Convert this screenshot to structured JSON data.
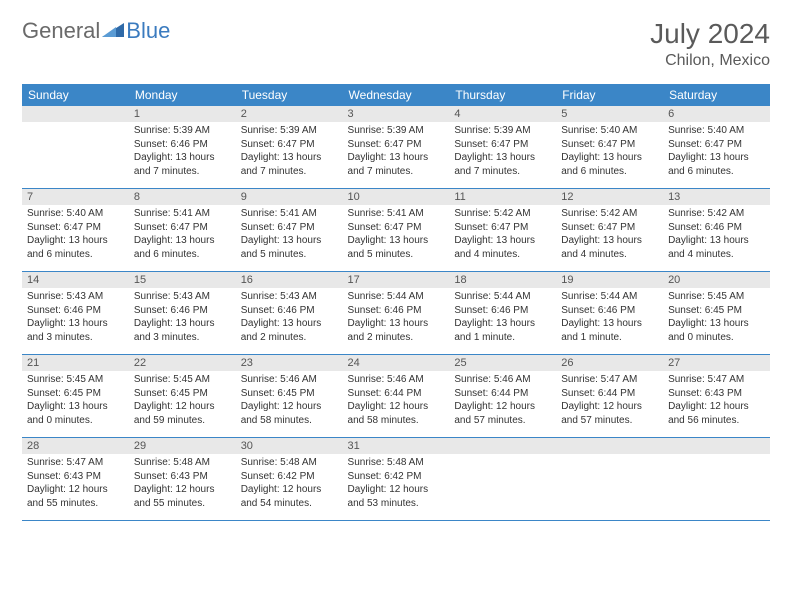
{
  "logo": {
    "text1": "General",
    "text2": "Blue"
  },
  "title": "July 2024",
  "location": "Chilon, Mexico",
  "weekday_headers": [
    "Sunday",
    "Monday",
    "Tuesday",
    "Wednesday",
    "Thursday",
    "Friday",
    "Saturday"
  ],
  "colors": {
    "header_bg": "#3b86c7",
    "header_text": "#ffffff",
    "daynum_bg": "#e8e8e8",
    "border": "#3b86c7",
    "title_color": "#5a5a5a",
    "logo_gray": "#6a6a6a",
    "logo_blue": "#3b7bbf"
  },
  "weeks": [
    [
      {
        "n": "",
        "sr": "",
        "ss": "",
        "dl": ""
      },
      {
        "n": "1",
        "sr": "Sunrise: 5:39 AM",
        "ss": "Sunset: 6:46 PM",
        "dl": "Daylight: 13 hours and 7 minutes."
      },
      {
        "n": "2",
        "sr": "Sunrise: 5:39 AM",
        "ss": "Sunset: 6:47 PM",
        "dl": "Daylight: 13 hours and 7 minutes."
      },
      {
        "n": "3",
        "sr": "Sunrise: 5:39 AM",
        "ss": "Sunset: 6:47 PM",
        "dl": "Daylight: 13 hours and 7 minutes."
      },
      {
        "n": "4",
        "sr": "Sunrise: 5:39 AM",
        "ss": "Sunset: 6:47 PM",
        "dl": "Daylight: 13 hours and 7 minutes."
      },
      {
        "n": "5",
        "sr": "Sunrise: 5:40 AM",
        "ss": "Sunset: 6:47 PM",
        "dl": "Daylight: 13 hours and 6 minutes."
      },
      {
        "n": "6",
        "sr": "Sunrise: 5:40 AM",
        "ss": "Sunset: 6:47 PM",
        "dl": "Daylight: 13 hours and 6 minutes."
      }
    ],
    [
      {
        "n": "7",
        "sr": "Sunrise: 5:40 AM",
        "ss": "Sunset: 6:47 PM",
        "dl": "Daylight: 13 hours and 6 minutes."
      },
      {
        "n": "8",
        "sr": "Sunrise: 5:41 AM",
        "ss": "Sunset: 6:47 PM",
        "dl": "Daylight: 13 hours and 6 minutes."
      },
      {
        "n": "9",
        "sr": "Sunrise: 5:41 AM",
        "ss": "Sunset: 6:47 PM",
        "dl": "Daylight: 13 hours and 5 minutes."
      },
      {
        "n": "10",
        "sr": "Sunrise: 5:41 AM",
        "ss": "Sunset: 6:47 PM",
        "dl": "Daylight: 13 hours and 5 minutes."
      },
      {
        "n": "11",
        "sr": "Sunrise: 5:42 AM",
        "ss": "Sunset: 6:47 PM",
        "dl": "Daylight: 13 hours and 4 minutes."
      },
      {
        "n": "12",
        "sr": "Sunrise: 5:42 AM",
        "ss": "Sunset: 6:47 PM",
        "dl": "Daylight: 13 hours and 4 minutes."
      },
      {
        "n": "13",
        "sr": "Sunrise: 5:42 AM",
        "ss": "Sunset: 6:46 PM",
        "dl": "Daylight: 13 hours and 4 minutes."
      }
    ],
    [
      {
        "n": "14",
        "sr": "Sunrise: 5:43 AM",
        "ss": "Sunset: 6:46 PM",
        "dl": "Daylight: 13 hours and 3 minutes."
      },
      {
        "n": "15",
        "sr": "Sunrise: 5:43 AM",
        "ss": "Sunset: 6:46 PM",
        "dl": "Daylight: 13 hours and 3 minutes."
      },
      {
        "n": "16",
        "sr": "Sunrise: 5:43 AM",
        "ss": "Sunset: 6:46 PM",
        "dl": "Daylight: 13 hours and 2 minutes."
      },
      {
        "n": "17",
        "sr": "Sunrise: 5:44 AM",
        "ss": "Sunset: 6:46 PM",
        "dl": "Daylight: 13 hours and 2 minutes."
      },
      {
        "n": "18",
        "sr": "Sunrise: 5:44 AM",
        "ss": "Sunset: 6:46 PM",
        "dl": "Daylight: 13 hours and 1 minute."
      },
      {
        "n": "19",
        "sr": "Sunrise: 5:44 AM",
        "ss": "Sunset: 6:46 PM",
        "dl": "Daylight: 13 hours and 1 minute."
      },
      {
        "n": "20",
        "sr": "Sunrise: 5:45 AM",
        "ss": "Sunset: 6:45 PM",
        "dl": "Daylight: 13 hours and 0 minutes."
      }
    ],
    [
      {
        "n": "21",
        "sr": "Sunrise: 5:45 AM",
        "ss": "Sunset: 6:45 PM",
        "dl": "Daylight: 13 hours and 0 minutes."
      },
      {
        "n": "22",
        "sr": "Sunrise: 5:45 AM",
        "ss": "Sunset: 6:45 PM",
        "dl": "Daylight: 12 hours and 59 minutes."
      },
      {
        "n": "23",
        "sr": "Sunrise: 5:46 AM",
        "ss": "Sunset: 6:45 PM",
        "dl": "Daylight: 12 hours and 58 minutes."
      },
      {
        "n": "24",
        "sr": "Sunrise: 5:46 AM",
        "ss": "Sunset: 6:44 PM",
        "dl": "Daylight: 12 hours and 58 minutes."
      },
      {
        "n": "25",
        "sr": "Sunrise: 5:46 AM",
        "ss": "Sunset: 6:44 PM",
        "dl": "Daylight: 12 hours and 57 minutes."
      },
      {
        "n": "26",
        "sr": "Sunrise: 5:47 AM",
        "ss": "Sunset: 6:44 PM",
        "dl": "Daylight: 12 hours and 57 minutes."
      },
      {
        "n": "27",
        "sr": "Sunrise: 5:47 AM",
        "ss": "Sunset: 6:43 PM",
        "dl": "Daylight: 12 hours and 56 minutes."
      }
    ],
    [
      {
        "n": "28",
        "sr": "Sunrise: 5:47 AM",
        "ss": "Sunset: 6:43 PM",
        "dl": "Daylight: 12 hours and 55 minutes."
      },
      {
        "n": "29",
        "sr": "Sunrise: 5:48 AM",
        "ss": "Sunset: 6:43 PM",
        "dl": "Daylight: 12 hours and 55 minutes."
      },
      {
        "n": "30",
        "sr": "Sunrise: 5:48 AM",
        "ss": "Sunset: 6:42 PM",
        "dl": "Daylight: 12 hours and 54 minutes."
      },
      {
        "n": "31",
        "sr": "Sunrise: 5:48 AM",
        "ss": "Sunset: 6:42 PM",
        "dl": "Daylight: 12 hours and 53 minutes."
      },
      {
        "n": "",
        "sr": "",
        "ss": "",
        "dl": ""
      },
      {
        "n": "",
        "sr": "",
        "ss": "",
        "dl": ""
      },
      {
        "n": "",
        "sr": "",
        "ss": "",
        "dl": ""
      }
    ]
  ]
}
